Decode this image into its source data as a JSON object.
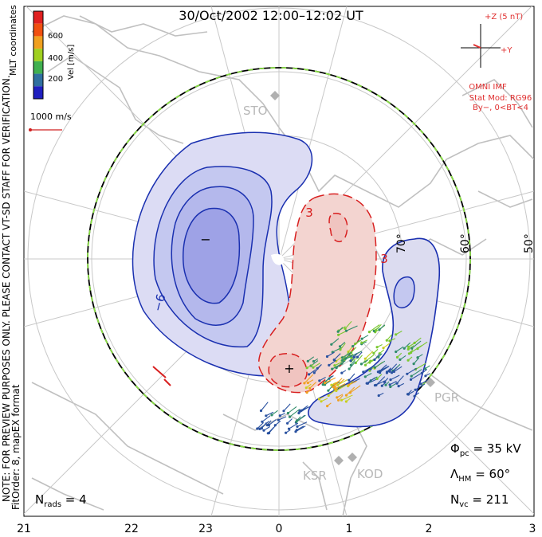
{
  "title": "30/Oct/2002 12:00–12:02 UT",
  "colorbar": {
    "label": "Vel [m/s]",
    "ticks": [
      "600",
      "400",
      "200"
    ],
    "colors": [
      "#e02020",
      "#f05010",
      "#f0a020",
      "#a0d020",
      "#40b050",
      "#3070a0",
      "#2020c0"
    ]
  },
  "coordinates_label": "MLT coordinates",
  "vector_scale": {
    "label": "1000 m/s",
    "color": "#d02020"
  },
  "imf": {
    "z_label": "+Z (5 nT)",
    "y_label": "+Y",
    "source": "OMNI IMF",
    "stat_mod": "Stat Mod: RG96",
    "bins": "By−, 0<BT<4",
    "color": "#e03030"
  },
  "note": "NOTE: FOR PREVIEW PURPOSES ONLY. PLEASE CONTACT VT-SD STAFF FOR VERIFICATION.",
  "fit": "FitOrder: 8, mapEX format",
  "stations": [
    "STO",
    "PGR",
    "KSR",
    "KOD"
  ],
  "latitude_labels": [
    "70°",
    "60°",
    "50°"
  ],
  "contour_labels": {
    "negative": "−6",
    "positive_top": "3",
    "positive_side": "3"
  },
  "focus_marks": {
    "min": "−",
    "max": "+"
  },
  "stats": {
    "phi_pc_sym": "Φ",
    "phi_pc_sub": "pc",
    "phi_pc_val": " = 35 kV",
    "lambda_hm_sym": "Λ",
    "lambda_hm_sub": "HM",
    "lambda_hm_val": " = 60°",
    "n_vc_sym": "N",
    "n_vc_sub": "vc",
    "n_vc_val": " = 211",
    "n_rads_sym": "N",
    "n_rads_sub": "rads",
    "n_rads_val": " = 4"
  },
  "mlt_axis": [
    "21",
    "22",
    "23",
    "0",
    "1",
    "2",
    "3"
  ],
  "colors": {
    "negative_fill": "#b4b8ec",
    "negative_line": "#1a30b0",
    "positive_fill": "#f3d4d0",
    "positive_line": "#d82020",
    "boundary_green": "#88dd44",
    "grid": "#c8c8c8",
    "coast": "#c0c0c0"
  }
}
